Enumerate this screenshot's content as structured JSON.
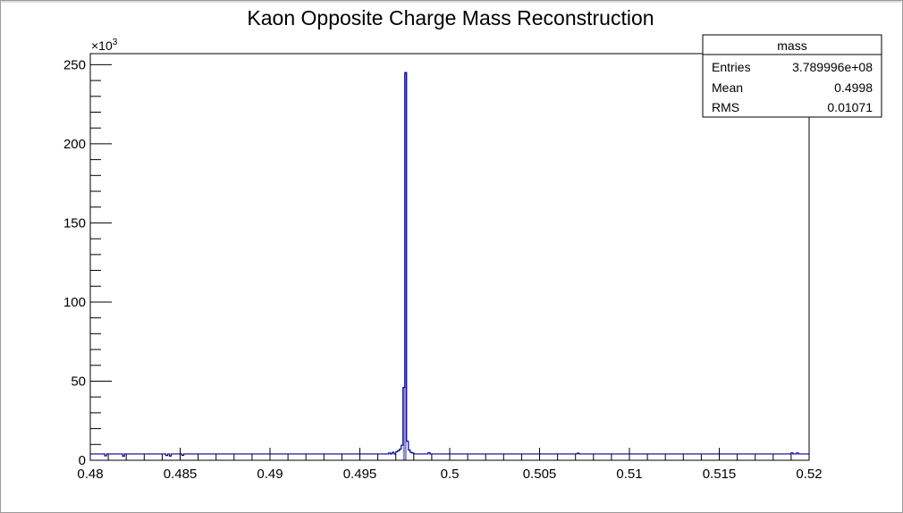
{
  "chart_data": {
    "type": "histogram",
    "title": "Kaon Opposite Charge Mass Reconstruction",
    "xlabel": "",
    "ylabel": "",
    "xlim": [
      0.48,
      0.52
    ],
    "ylim": [
      0,
      257000
    ],
    "y_scale_factor_label": "×10",
    "y_scale_factor_exponent": "3",
    "x_ticks": [
      {
        "value": 0.48,
        "label": "0.48"
      },
      {
        "value": 0.485,
        "label": "0.485"
      },
      {
        "value": 0.49,
        "label": "0.49"
      },
      {
        "value": 0.495,
        "label": "0.495"
      },
      {
        "value": 0.5,
        "label": "0.5"
      },
      {
        "value": 0.505,
        "label": "0.505"
      },
      {
        "value": 0.51,
        "label": "0.51"
      },
      {
        "value": 0.515,
        "label": "0.515"
      },
      {
        "value": 0.52,
        "label": "0.52"
      }
    ],
    "y_ticks": [
      {
        "value": 0,
        "label": "0"
      },
      {
        "value": 50000,
        "label": "50"
      },
      {
        "value": 100000,
        "label": "100"
      },
      {
        "value": 150000,
        "label": "150"
      },
      {
        "value": 200000,
        "label": "200"
      },
      {
        "value": 250000,
        "label": "250"
      }
    ],
    "bin_width": 0.0001,
    "baseline": 4000,
    "bins": [
      {
        "x": 0.4808,
        "y": 2800
      },
      {
        "x": 0.4818,
        "y": 2600
      },
      {
        "x": 0.4842,
        "y": 3000
      },
      {
        "x": 0.4844,
        "y": 2700
      },
      {
        "x": 0.4851,
        "y": 3100
      },
      {
        "x": 0.4966,
        "y": 4600
      },
      {
        "x": 0.4968,
        "y": 5000
      },
      {
        "x": 0.497,
        "y": 5400
      },
      {
        "x": 0.4971,
        "y": 6000
      },
      {
        "x": 0.4972,
        "y": 7000
      },
      {
        "x": 0.4973,
        "y": 9500
      },
      {
        "x": 0.4974,
        "y": 46000
      },
      {
        "x": 0.4975,
        "y": 245000
      },
      {
        "x": 0.4976,
        "y": 12000
      },
      {
        "x": 0.4977,
        "y": 6500
      },
      {
        "x": 0.4978,
        "y": 5000
      },
      {
        "x": 0.4979,
        "y": 4600
      },
      {
        "x": 0.4988,
        "y": 4800
      },
      {
        "x": 0.5071,
        "y": 4500
      },
      {
        "x": 0.519,
        "y": 4700
      },
      {
        "x": 0.5193,
        "y": 4600
      }
    ],
    "line_color": "#000099",
    "fill_color": "#8888cc",
    "grid": false,
    "legend_position": "top-right"
  },
  "stats_box": {
    "title": "mass",
    "rows": [
      {
        "label": "Entries",
        "value": "3.789996e+08"
      },
      {
        "label": "Mean",
        "value": "0.4998"
      },
      {
        "label": "RMS",
        "value": "0.01071"
      }
    ]
  }
}
